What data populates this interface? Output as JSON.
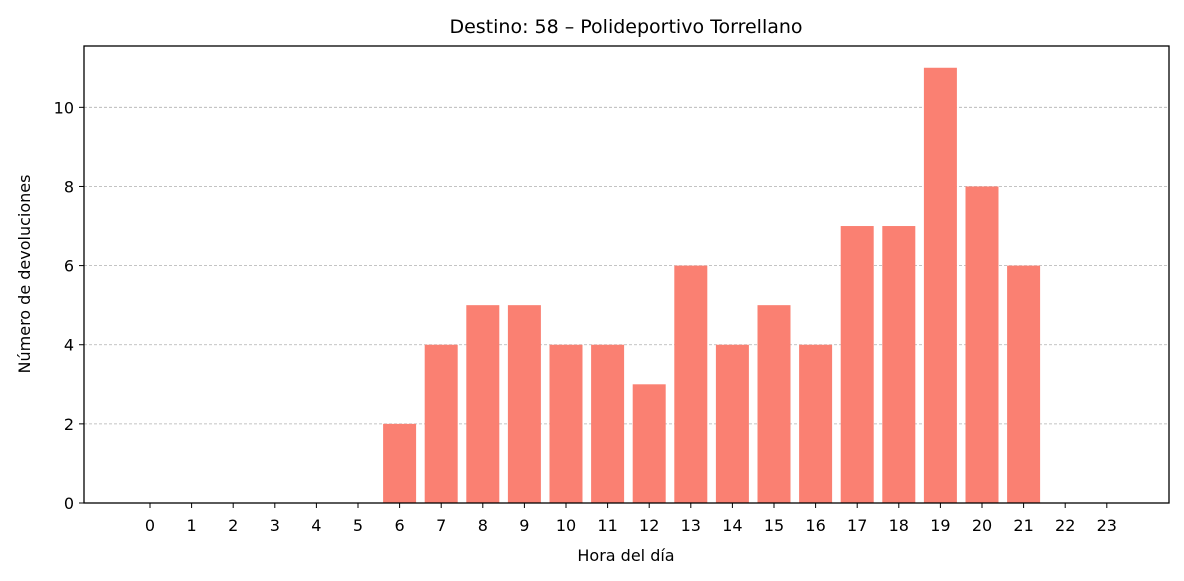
{
  "chart_data": {
    "type": "bar",
    "title": "Destino: 58 – Polideportivo Torrellano",
    "xlabel": "Hora del día",
    "ylabel": "Número de devoluciones",
    "categories": [
      "0",
      "1",
      "2",
      "3",
      "4",
      "5",
      "6",
      "7",
      "8",
      "9",
      "10",
      "11",
      "12",
      "13",
      "14",
      "15",
      "16",
      "17",
      "18",
      "19",
      "20",
      "21",
      "22",
      "23"
    ],
    "values": [
      0,
      0,
      0,
      0,
      0,
      0,
      2,
      4,
      5,
      5,
      4,
      4,
      3,
      6,
      4,
      5,
      4,
      7,
      7,
      11,
      8,
      6,
      0,
      0
    ],
    "ylim": [
      0,
      11.55
    ],
    "yticks": [
      0,
      2,
      4,
      6,
      8,
      10
    ],
    "grid": "y-dashed",
    "bar_color": "#fa8072"
  }
}
